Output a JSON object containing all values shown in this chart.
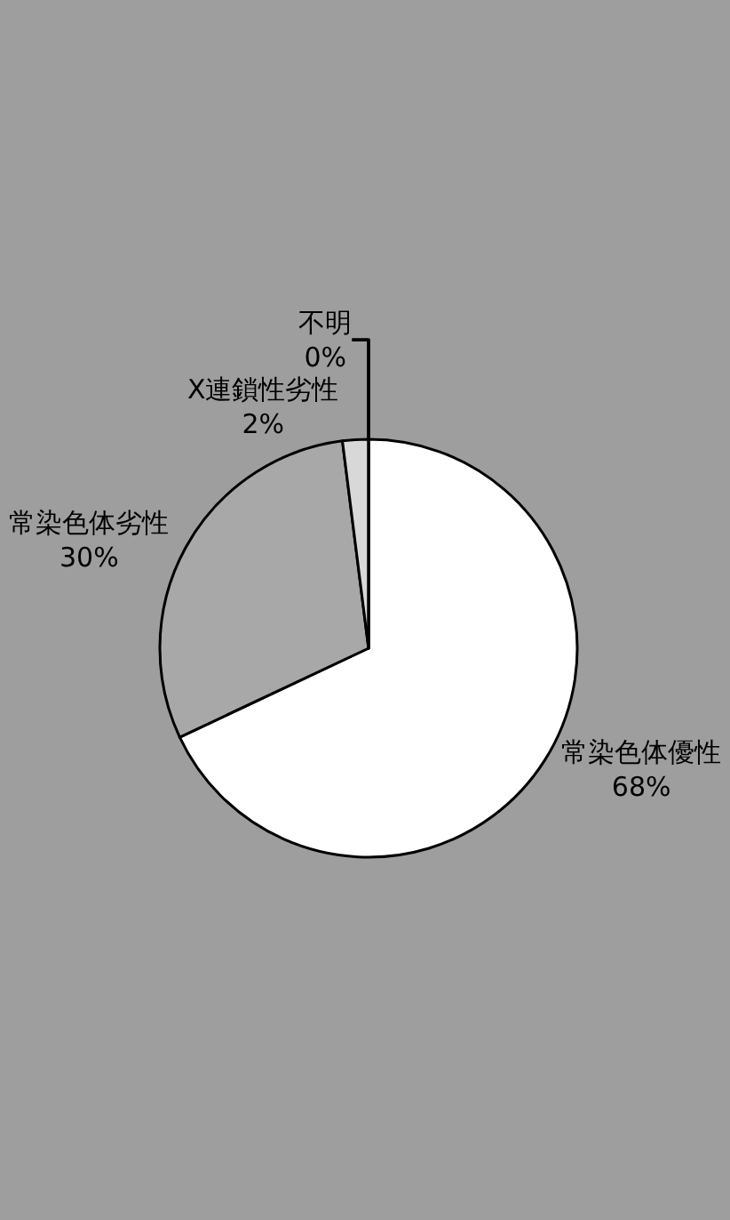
{
  "chart_data": {
    "type": "pie",
    "categories": [
      "常染色体優性",
      "常染色体劣性",
      "X連鎖性劣性",
      "不明"
    ],
    "values": [
      68,
      30,
      2,
      0
    ],
    "value_labels": [
      "68%",
      "30%",
      "2%",
      "0%"
    ],
    "colors": [
      "#ffffff",
      "#a8a8a8",
      "#d8d8d8",
      "#f0f0f0"
    ],
    "legend": false
  }
}
